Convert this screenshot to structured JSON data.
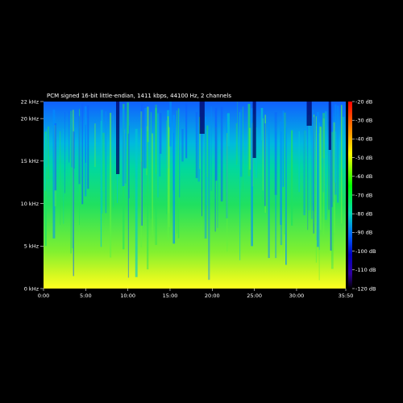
{
  "chart_data": {
    "type": "heatmap",
    "title": "PCM signed 16-bit little-endian, 1411 kbps, 44100 Hz, 2 channels",
    "y_ticks": [
      {
        "value": 0,
        "label": "0 kHz"
      },
      {
        "value": 5,
        "label": "5 kHz"
      },
      {
        "value": 10,
        "label": "10 kHz"
      },
      {
        "value": 15,
        "label": "15 kHz"
      },
      {
        "value": 20,
        "label": "20 kHz"
      },
      {
        "value": 22,
        "label": "22 kHz"
      }
    ],
    "x_ticks": [
      {
        "value": 0,
        "label": "0:00"
      },
      {
        "value": 5,
        "label": "5:00"
      },
      {
        "value": 10,
        "label": "10:00"
      },
      {
        "value": 15,
        "label": "15:00"
      },
      {
        "value": 20,
        "label": "20:00"
      },
      {
        "value": 25,
        "label": "25:00"
      },
      {
        "value": 30,
        "label": "30:00"
      },
      {
        "value": 35.833,
        "label": "35:50"
      }
    ],
    "xlim": [
      0,
      35.833
    ],
    "ylim": [
      0,
      22
    ],
    "colorbar": {
      "range": [
        -120,
        -20
      ],
      "ticks": [
        {
          "value": -20,
          "label": "-20 dB"
        },
        {
          "value": -30,
          "label": "-30 dB"
        },
        {
          "value": -40,
          "label": "-40 dB"
        },
        {
          "value": -50,
          "label": "-50 dB"
        },
        {
          "value": -60,
          "label": "-60 dB"
        },
        {
          "value": -70,
          "label": "-70 dB"
        },
        {
          "value": -80,
          "label": "-80 dB"
        },
        {
          "value": -90,
          "label": "-90 dB"
        },
        {
          "value": -100,
          "label": "-100 dB"
        },
        {
          "value": -110,
          "label": "-110 dB"
        },
        {
          "value": -120,
          "label": "-120 dB"
        }
      ],
      "colors": [
        "#ff0000",
        "#ff8800",
        "#ffff00",
        "#00ff00",
        "#00d8b8",
        "#0060ff",
        "#0000a0",
        "#3000a0",
        "#000000"
      ]
    },
    "spectrum_colors": {
      "high_band": "#1060ff",
      "upper_mid_band": "#00c8c8",
      "mid_band": "#20e060",
      "low_band": "#a0f020",
      "bass_band": "#ffff20",
      "quiet_column": "#000060"
    }
  }
}
